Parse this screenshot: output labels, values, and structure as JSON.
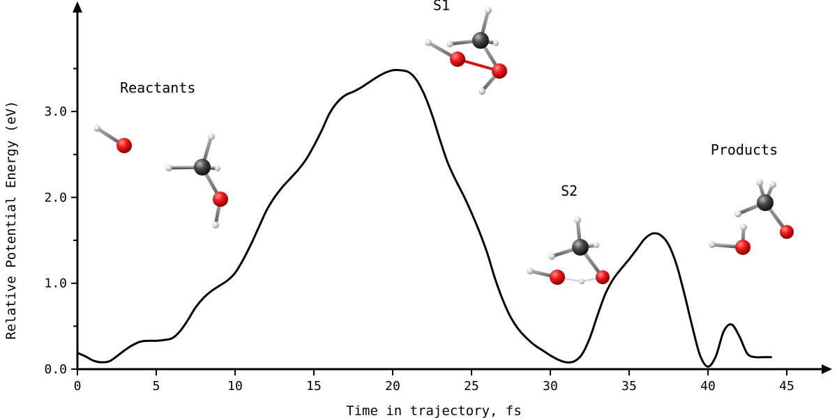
{
  "chart_data": {
    "type": "line",
    "title": "",
    "xlabel": "Time in trajectory, fs",
    "ylabel": "Relative Potential Energy (eV)",
    "xlim": [
      0,
      47
    ],
    "ylim": [
      0,
      4.2
    ],
    "xticks": [
      0,
      5,
      10,
      15,
      20,
      25,
      30,
      35,
      40,
      45
    ],
    "xtick_labels": [
      "0",
      "5",
      "10",
      "15",
      "20",
      "25",
      "30",
      "35",
      "40",
      "45"
    ],
    "yticks": [
      0,
      0.5,
      1.0,
      1.5,
      2.0,
      2.5,
      3.0,
      3.5
    ],
    "ytick_labels": [
      "0.0",
      "",
      "1.0",
      "",
      "2.0",
      "",
      "3.0",
      ""
    ],
    "grid": false,
    "series": [
      {
        "x": [
          0,
          0.5,
          1.0,
          1.5,
          2.0,
          2.5,
          3.0,
          3.5,
          4.0,
          4.5,
          5.0,
          5.5,
          6.0,
          6.5,
          7.0,
          7.5,
          8.0,
          8.5,
          9.0,
          9.5,
          10.0,
          10.5,
          11.0,
          11.5,
          12.0,
          12.5,
          13.0,
          13.5,
          14.0,
          14.5,
          15.0,
          15.5,
          16.0,
          16.5,
          17.0,
          17.5,
          18.0,
          18.5,
          19.0,
          19.5,
          20.0,
          20.5,
          21.0,
          21.5,
          22.0,
          22.5,
          23.0,
          23.5,
          24.0,
          24.5,
          25.0,
          25.5,
          26.0,
          26.5,
          27.0,
          27.5,
          28.0,
          28.5,
          29.0,
          29.5,
          30.0,
          30.5,
          31.0,
          31.5,
          32.0,
          32.5,
          33.0,
          33.5,
          34.0,
          34.5,
          35.0,
          35.5,
          36.0,
          36.5,
          37.0,
          37.5,
          38.0,
          38.5,
          39.0,
          39.5,
          40.0,
          40.5,
          41.0,
          41.5,
          42.0,
          42.5,
          43.0,
          43.5,
          44.0
        ],
        "y": [
          0.19,
          0.15,
          0.1,
          0.08,
          0.09,
          0.15,
          0.22,
          0.28,
          0.32,
          0.33,
          0.33,
          0.34,
          0.36,
          0.44,
          0.57,
          0.72,
          0.83,
          0.91,
          0.97,
          1.03,
          1.12,
          1.27,
          1.45,
          1.65,
          1.85,
          2.0,
          2.12,
          2.22,
          2.32,
          2.44,
          2.6,
          2.78,
          2.98,
          3.11,
          3.19,
          3.23,
          3.28,
          3.34,
          3.4,
          3.45,
          3.48,
          3.48,
          3.46,
          3.37,
          3.2,
          2.96,
          2.67,
          2.4,
          2.2,
          2.02,
          1.82,
          1.6,
          1.35,
          1.05,
          0.8,
          0.6,
          0.46,
          0.36,
          0.28,
          0.22,
          0.16,
          0.11,
          0.08,
          0.09,
          0.17,
          0.36,
          0.63,
          0.88,
          1.05,
          1.17,
          1.28,
          1.4,
          1.52,
          1.58,
          1.56,
          1.45,
          1.22,
          0.88,
          0.5,
          0.16,
          0.03,
          0.15,
          0.44,
          0.52,
          0.38,
          0.18,
          0.14,
          0.14,
          0.14
        ]
      }
    ],
    "annotations": [
      {
        "text": "Reactants",
        "x": 5.1,
        "y": 3.22
      },
      {
        "text": "S1",
        "x": 23.1,
        "y": 4.18
      },
      {
        "text": "S2",
        "x": 31.2,
        "y": 2.02
      },
      {
        "text": "Products",
        "x": 42.3,
        "y": 2.5
      }
    ]
  },
  "colors": {
    "line": "#000000",
    "oxygen": "#e01010",
    "carbon": "#333333",
    "hydrogen": "#d8d8d8"
  },
  "molecule_icons": [
    "oh-radical-icon",
    "methanol-icon",
    "s1-structure-icon",
    "s2-structure-icon",
    "water-icon",
    "formaldehyde-icon"
  ]
}
